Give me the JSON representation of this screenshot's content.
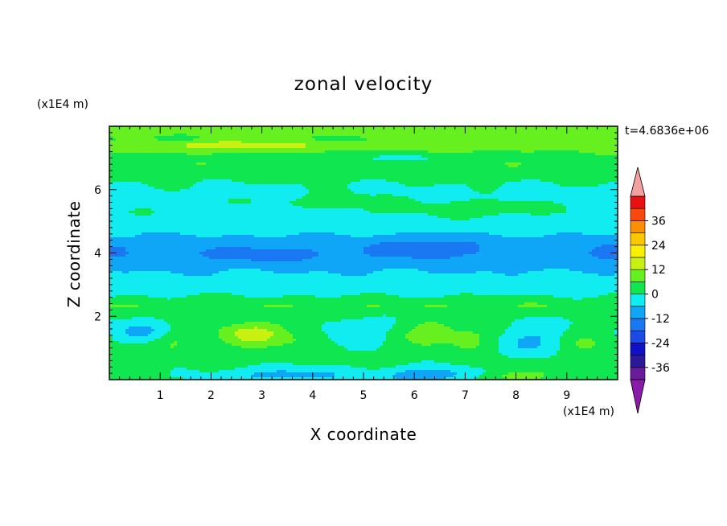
{
  "chart_data": {
    "type": "heatmap",
    "title": "zonal velocity",
    "xlabel": "X coordinate",
    "ylabel": "Z coordinate",
    "x_units": "(x1E4 m)",
    "y_units": "(x1E4 m)",
    "time_label": "t=4.6836e+06",
    "xlim": [
      0,
      10
    ],
    "ylim": [
      0,
      8
    ],
    "x_ticks": [
      1,
      2,
      3,
      4,
      5,
      6,
      7,
      8,
      9
    ],
    "y_ticks": [
      2,
      4,
      6
    ],
    "colorbar": {
      "levels": [
        -42,
        -36,
        -30,
        -24,
        -18,
        -12,
        -6,
        0,
        6,
        12,
        18,
        24,
        30,
        36,
        42
      ],
      "labels": [
        -36,
        -24,
        -12,
        0,
        12,
        24,
        36
      ],
      "colors": [
        "#6a1b9a",
        "#2a1a9a",
        "#1010c8",
        "#1c4ae6",
        "#1a78f2",
        "#10a6f8",
        "#10ecf0",
        "#10e650",
        "#66f020",
        "#c8f010",
        "#f8f000",
        "#f8c800",
        "#f89000",
        "#f84810",
        "#e81010"
      ],
      "under_color": "#8a1aa8",
      "over_color": "#f4a0a0"
    },
    "zonal_profile": [
      {
        "z": 0.0,
        "u": 1
      },
      {
        "z": 0.6,
        "u": 2
      },
      {
        "z": 1.2,
        "u": 1
      },
      {
        "z": 1.8,
        "u": 0
      },
      {
        "z": 2.2,
        "u": 2
      },
      {
        "z": 2.35,
        "u": 6
      },
      {
        "z": 2.5,
        "u": 2
      },
      {
        "z": 2.8,
        "u": -2
      },
      {
        "z": 3.2,
        "u": -4
      },
      {
        "z": 3.6,
        "u": -8
      },
      {
        "z": 4.0,
        "u": -10
      },
      {
        "z": 4.4,
        "u": -8
      },
      {
        "z": 4.8,
        "u": -3
      },
      {
        "z": 5.3,
        "u": -1
      },
      {
        "z": 5.8,
        "u": -2
      },
      {
        "z": 6.2,
        "u": 0
      },
      {
        "z": 6.5,
        "u": 3
      },
      {
        "z": 6.8,
        "u": 5
      },
      {
        "z": 7.0,
        "u": 3
      },
      {
        "z": 7.2,
        "u": 6
      },
      {
        "z": 7.4,
        "u": 9
      },
      {
        "z": 7.6,
        "u": 5
      },
      {
        "z": 7.8,
        "u": 8
      },
      {
        "z": 8.0,
        "u": 11
      }
    ],
    "features": [
      {
        "x": 2.85,
        "z": 1.45,
        "rx": 0.75,
        "rz": 0.42,
        "amp": 14
      },
      {
        "x": 6.3,
        "z": 1.5,
        "rx": 0.55,
        "rz": 0.45,
        "amp": 9
      },
      {
        "x": 7.1,
        "z": 1.3,
        "rx": 0.45,
        "rz": 0.4,
        "amp": 7
      },
      {
        "x": 1.3,
        "z": 1.2,
        "rx": 0.45,
        "rz": 0.35,
        "amp": 5
      },
      {
        "x": 4.0,
        "z": 1.2,
        "rx": 0.45,
        "rz": 0.35,
        "amp": 4
      },
      {
        "x": 9.4,
        "z": 1.2,
        "rx": 0.4,
        "rz": 0.4,
        "amp": 6
      },
      {
        "x": 0.6,
        "z": 1.5,
        "rx": 0.5,
        "rz": 0.3,
        "amp": -8
      },
      {
        "x": 4.8,
        "z": 1.45,
        "rx": 0.55,
        "rz": 0.35,
        "amp": -7
      },
      {
        "x": 8.3,
        "z": 1.2,
        "rx": 0.6,
        "rz": 0.45,
        "amp": -8
      },
      {
        "x": 3.5,
        "z": 0.15,
        "rx": 1.2,
        "rz": 0.25,
        "amp": -10
      },
      {
        "x": 6.3,
        "z": 0.15,
        "rx": 1.0,
        "rz": 0.25,
        "amp": -12
      },
      {
        "x": 7.9,
        "z": 0.1,
        "rx": 0.8,
        "rz": 0.2,
        "amp": 8
      },
      {
        "x": 3.0,
        "z": 3.95,
        "rx": 1.1,
        "rz": 0.2,
        "amp": -8
      },
      {
        "x": 6.2,
        "z": 4.15,
        "rx": 1.0,
        "rz": 0.3,
        "amp": -8
      },
      {
        "x": 9.8,
        "z": 4.05,
        "rx": 0.4,
        "rz": 0.25,
        "amp": -7
      },
      {
        "x": 0.1,
        "z": 4.1,
        "rx": 0.25,
        "rz": 0.2,
        "amp": -6
      },
      {
        "x": 4.5,
        "z": 5.6,
        "rx": 1.5,
        "rz": 0.3,
        "amp": 4
      },
      {
        "x": 7.3,
        "z": 5.4,
        "rx": 1.1,
        "rz": 0.25,
        "amp": 5
      },
      {
        "x": 3.2,
        "z": 5.3,
        "rx": 1.0,
        "rz": 0.2,
        "amp": -4
      },
      {
        "x": 2.5,
        "z": 7.4,
        "rx": 1.5,
        "rz": 0.18,
        "amp": 7
      },
      {
        "x": 8.0,
        "z": 7.6,
        "rx": 1.5,
        "rz": 0.2,
        "amp": 5
      },
      {
        "x": 5.5,
        "z": 7.0,
        "rx": 1.5,
        "rz": 0.15,
        "amp": -4
      }
    ]
  }
}
